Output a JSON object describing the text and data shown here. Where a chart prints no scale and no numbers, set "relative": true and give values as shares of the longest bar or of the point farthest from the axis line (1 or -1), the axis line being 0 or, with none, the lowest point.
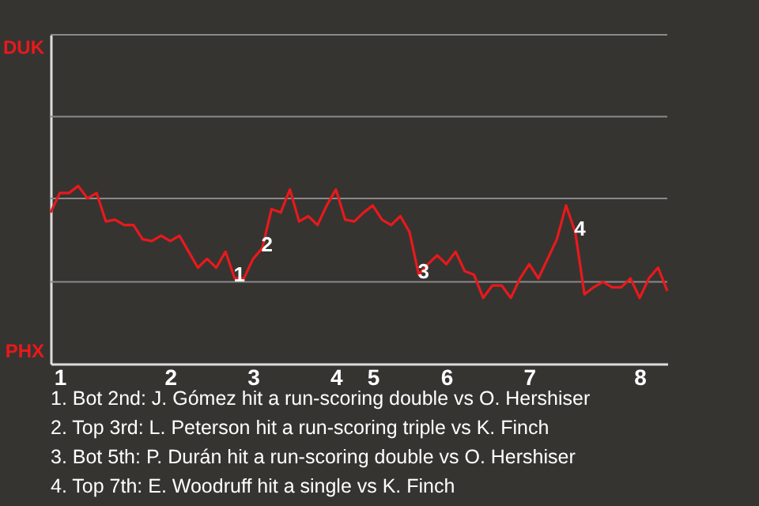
{
  "chart_data": {
    "type": "line",
    "relative": true,
    "categories": [
      null,
      "1",
      null,
      null,
      null,
      null,
      null,
      null,
      null,
      null,
      null,
      null,
      null,
      "2",
      null,
      null,
      null,
      null,
      null,
      null,
      null,
      null,
      "3",
      null,
      null,
      null,
      null,
      null,
      null,
      null,
      null,
      "4",
      null,
      null,
      null,
      "5",
      null,
      null,
      null,
      null,
      null,
      null,
      null,
      "6",
      null,
      null,
      null,
      null,
      null,
      null,
      null,
      null,
      "7",
      null,
      null,
      null,
      null,
      null,
      null,
      null,
      null,
      null,
      null,
      null,
      "8",
      null,
      null,
      null
    ],
    "series": [
      {
        "color": "#e8191c",
        "values": [
          0.85,
          0.96,
          0.96,
          1,
          0.93,
          0.96,
          0.8,
          0.81,
          0.78,
          0.78,
          0.7,
          0.69,
          0.72,
          0.69,
          0.72,
          0.63,
          0.54,
          0.59,
          0.54,
          0.63,
          0.48,
          0.48,
          0.59,
          0.65,
          0.87,
          0.85,
          0.98,
          0.8,
          0.83,
          0.78,
          0.89,
          0.98,
          0.81,
          0.8,
          0.85,
          0.89,
          0.81,
          0.78,
          0.83,
          0.74,
          0.5,
          0.56,
          0.61,
          0.56,
          0.63,
          0.52,
          0.5,
          0.37,
          0.44,
          0.44,
          0.37,
          0.48,
          0.56,
          0.48,
          0.59,
          0.7,
          0.89,
          0.74,
          0.39,
          0.43,
          0.46,
          0.43,
          0.43,
          0.48,
          0.37,
          0.48,
          0.54,
          0.41
        ]
      }
    ],
    "ref_lines": [
      {
        "axis": "y",
        "value": 0.46,
        "color": "#8a8a8a"
      },
      {
        "axis": "y",
        "value": 0.93,
        "color": "#8a8a8a"
      },
      {
        "axis": "y",
        "value": 1.39,
        "color": "#8a8a8a"
      },
      {
        "axis": "y",
        "value": 1.85,
        "color": "#8a8a8a"
      }
    ],
    "marker": "none",
    "line_style": "solid",
    "annotations": [
      "DUK",
      "PHX",
      {
        "text": "1",
        "y": 0.48
      },
      {
        "text": "2",
        "y": 0.65
      },
      {
        "text": "3",
        "y": 0.5
      },
      {
        "text": "4",
        "y": 0.74
      },
      "1. Bot 2nd: J. Gómez hit a run-scoring double vs O. Hershiser",
      "2. Top 3rd: L. Peterson hit a run-scoring triple vs K. Finch",
      "3. Bot 5th: P. Durán hit a run-scoring double vs O. Hershiser",
      "4. Top 7th: E. Woodruff hit a single vs K. Finch"
    ]
  }
}
